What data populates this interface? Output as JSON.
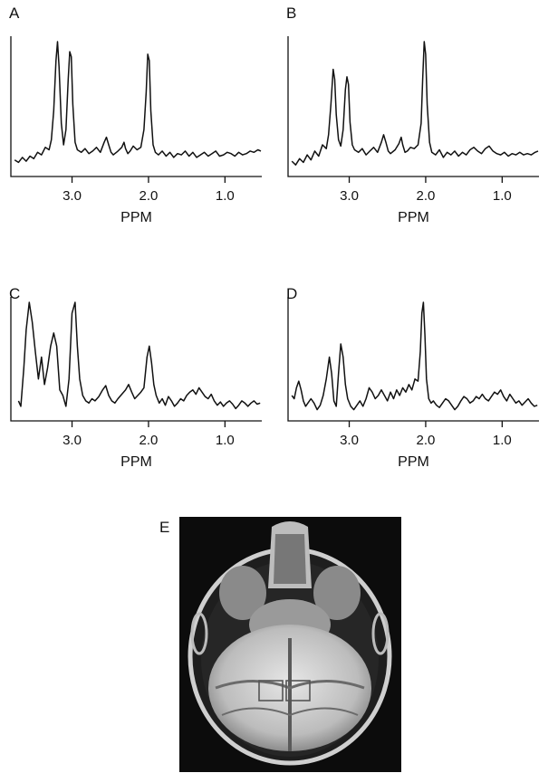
{
  "chart_data": [
    {
      "panel": "A",
      "type": "line",
      "xlabel": "PPM",
      "xlim": [
        3.8,
        0.4
      ],
      "x_reversed": true,
      "xticks": [
        3.0,
        2.0,
        1.0
      ],
      "xtick_labels": [
        "3.0",
        "2.0",
        "1.0"
      ],
      "series": [
        {
          "x": [
            3.75,
            3.7,
            3.65,
            3.6,
            3.55,
            3.5,
            3.45,
            3.4,
            3.35,
            3.3,
            3.27,
            3.24,
            3.21,
            3.19,
            3.17,
            3.14,
            3.11,
            3.08,
            3.05,
            3.03,
            3.01,
            2.99,
            2.96,
            2.93,
            2.88,
            2.83,
            2.78,
            2.73,
            2.68,
            2.63,
            2.58,
            2.55,
            2.52,
            2.49,
            2.46,
            2.4,
            2.35,
            2.32,
            2.3,
            2.27,
            2.24,
            2.2,
            2.15,
            2.1,
            2.06,
            2.03,
            2.01,
            1.99,
            1.97,
            1.94,
            1.91,
            1.87,
            1.82,
            1.77,
            1.72,
            1.67,
            1.62,
            1.57,
            1.52,
            1.47,
            1.42,
            1.37,
            1.32,
            1.27,
            1.22,
            1.17,
            1.12,
            1.07,
            1.02,
            0.97,
            0.92,
            0.87,
            0.82,
            0.77,
            0.72,
            0.67,
            0.62,
            0.57,
            0.53
          ],
          "y": [
            0.06,
            0.04,
            0.08,
            0.05,
            0.09,
            0.07,
            0.12,
            0.1,
            0.16,
            0.14,
            0.22,
            0.45,
            0.85,
            1.0,
            0.8,
            0.35,
            0.18,
            0.3,
            0.7,
            0.92,
            0.88,
            0.5,
            0.2,
            0.14,
            0.12,
            0.15,
            0.11,
            0.13,
            0.16,
            0.12,
            0.2,
            0.24,
            0.18,
            0.12,
            0.1,
            0.13,
            0.16,
            0.2,
            0.15,
            0.11,
            0.13,
            0.17,
            0.14,
            0.16,
            0.3,
            0.6,
            0.9,
            0.85,
            0.45,
            0.18,
            0.12,
            0.1,
            0.13,
            0.09,
            0.12,
            0.08,
            0.11,
            0.1,
            0.13,
            0.09,
            0.12,
            0.08,
            0.1,
            0.12,
            0.09,
            0.11,
            0.13,
            0.09,
            0.1,
            0.12,
            0.11,
            0.09,
            0.12,
            0.1,
            0.11,
            0.13,
            0.12,
            0.14,
            0.13
          ]
        }
      ]
    },
    {
      "panel": "B",
      "type": "line",
      "xlabel": "PPM",
      "xlim": [
        3.8,
        0.4
      ],
      "x_reversed": true,
      "xticks": [
        3.0,
        2.0,
        1.0
      ],
      "xtick_labels": [
        "3.0",
        "2.0",
        "1.0"
      ],
      "series": [
        {
          "x": [
            3.75,
            3.7,
            3.65,
            3.6,
            3.55,
            3.5,
            3.45,
            3.4,
            3.35,
            3.3,
            3.27,
            3.24,
            3.21,
            3.19,
            3.17,
            3.14,
            3.11,
            3.08,
            3.05,
            3.03,
            3.01,
            2.99,
            2.96,
            2.93,
            2.88,
            2.83,
            2.78,
            2.73,
            2.68,
            2.63,
            2.58,
            2.55,
            2.52,
            2.49,
            2.46,
            2.4,
            2.35,
            2.32,
            2.3,
            2.27,
            2.24,
            2.2,
            2.15,
            2.1,
            2.06,
            2.04,
            2.02,
            2.0,
            1.98,
            1.95,
            1.92,
            1.87,
            1.82,
            1.77,
            1.72,
            1.67,
            1.62,
            1.57,
            1.52,
            1.47,
            1.42,
            1.37,
            1.32,
            1.27,
            1.22,
            1.17,
            1.12,
            1.07,
            1.02,
            0.97,
            0.92,
            0.87,
            0.82,
            0.77,
            0.72,
            0.67,
            0.62,
            0.57,
            0.53
          ],
          "y": [
            0.05,
            0.02,
            0.07,
            0.04,
            0.1,
            0.06,
            0.13,
            0.09,
            0.18,
            0.15,
            0.26,
            0.5,
            0.78,
            0.7,
            0.42,
            0.22,
            0.17,
            0.3,
            0.62,
            0.72,
            0.66,
            0.36,
            0.18,
            0.14,
            0.12,
            0.15,
            0.1,
            0.13,
            0.16,
            0.12,
            0.2,
            0.26,
            0.2,
            0.13,
            0.11,
            0.14,
            0.19,
            0.24,
            0.18,
            0.12,
            0.13,
            0.16,
            0.15,
            0.18,
            0.35,
            0.7,
            1.0,
            0.9,
            0.5,
            0.2,
            0.12,
            0.1,
            0.14,
            0.08,
            0.12,
            0.1,
            0.13,
            0.09,
            0.12,
            0.1,
            0.14,
            0.16,
            0.13,
            0.11,
            0.15,
            0.17,
            0.13,
            0.11,
            0.1,
            0.12,
            0.09,
            0.11,
            0.1,
            0.12,
            0.1,
            0.11,
            0.1,
            0.12,
            0.13
          ]
        }
      ]
    },
    {
      "panel": "C",
      "type": "line",
      "xlabel": "PPM",
      "xlim": [
        3.8,
        0.4
      ],
      "x_reversed": true,
      "xticks": [
        3.0,
        2.0,
        1.0
      ],
      "xtick_labels": [
        "3.0",
        "2.0",
        "1.0"
      ],
      "series": [
        {
          "x": [
            3.7,
            3.67,
            3.63,
            3.6,
            3.56,
            3.52,
            3.48,
            3.44,
            3.4,
            3.36,
            3.32,
            3.28,
            3.24,
            3.2,
            3.16,
            3.12,
            3.08,
            3.04,
            3.0,
            2.96,
            2.93,
            2.9,
            2.86,
            2.82,
            2.78,
            2.74,
            2.7,
            2.65,
            2.6,
            2.56,
            2.52,
            2.48,
            2.44,
            2.4,
            2.35,
            2.3,
            2.26,
            2.22,
            2.18,
            2.14,
            2.1,
            2.06,
            2.02,
            1.99,
            1.96,
            1.93,
            1.9,
            1.86,
            1.82,
            1.78,
            1.74,
            1.7,
            1.66,
            1.62,
            1.58,
            1.54,
            1.5,
            1.46,
            1.42,
            1.38,
            1.34,
            1.3,
            1.26,
            1.22,
            1.18,
            1.14,
            1.1,
            1.06,
            1.02,
            0.98,
            0.94,
            0.9,
            0.86,
            0.82,
            0.78,
            0.74,
            0.7,
            0.66,
            0.62,
            0.58,
            0.54
          ],
          "y": [
            0.1,
            0.05,
            0.4,
            0.75,
            1.0,
            0.82,
            0.55,
            0.3,
            0.5,
            0.25,
            0.4,
            0.6,
            0.72,
            0.6,
            0.2,
            0.15,
            0.05,
            0.3,
            0.9,
            1.0,
            0.6,
            0.3,
            0.15,
            0.1,
            0.08,
            0.12,
            0.1,
            0.14,
            0.2,
            0.24,
            0.15,
            0.1,
            0.08,
            0.12,
            0.16,
            0.2,
            0.25,
            0.18,
            0.12,
            0.15,
            0.18,
            0.22,
            0.5,
            0.6,
            0.45,
            0.25,
            0.15,
            0.08,
            0.12,
            0.06,
            0.14,
            0.1,
            0.05,
            0.08,
            0.12,
            0.1,
            0.15,
            0.18,
            0.2,
            0.16,
            0.22,
            0.18,
            0.14,
            0.12,
            0.16,
            0.1,
            0.06,
            0.09,
            0.05,
            0.08,
            0.1,
            0.07,
            0.03,
            0.06,
            0.1,
            0.08,
            0.05,
            0.08,
            0.1,
            0.07,
            0.08
          ]
        }
      ]
    },
    {
      "panel": "D",
      "type": "line",
      "xlabel": "PPM",
      "xlim": [
        3.8,
        0.4
      ],
      "x_reversed": true,
      "xticks": [
        3.0,
        2.0,
        1.0
      ],
      "xtick_labels": [
        "3.0",
        "2.0",
        "1.0"
      ],
      "series": [
        {
          "x": [
            3.75,
            3.72,
            3.69,
            3.66,
            3.63,
            3.6,
            3.57,
            3.54,
            3.5,
            3.46,
            3.42,
            3.38,
            3.34,
            3.3,
            3.26,
            3.23,
            3.2,
            3.17,
            3.14,
            3.11,
            3.08,
            3.05,
            3.02,
            2.98,
            2.94,
            2.9,
            2.86,
            2.82,
            2.78,
            2.74,
            2.7,
            2.66,
            2.62,
            2.58,
            2.54,
            2.5,
            2.46,
            2.42,
            2.38,
            2.34,
            2.3,
            2.26,
            2.22,
            2.18,
            2.14,
            2.1,
            2.07,
            2.05,
            2.03,
            2.01,
            1.99,
            1.96,
            1.93,
            1.9,
            1.86,
            1.82,
            1.78,
            1.74,
            1.7,
            1.66,
            1.62,
            1.58,
            1.54,
            1.5,
            1.46,
            1.42,
            1.38,
            1.34,
            1.3,
            1.26,
            1.22,
            1.18,
            1.14,
            1.1,
            1.06,
            1.02,
            0.98,
            0.94,
            0.9,
            0.86,
            0.82,
            0.78,
            0.74,
            0.7,
            0.66,
            0.62,
            0.58,
            0.54
          ],
          "y": [
            0.15,
            0.12,
            0.22,
            0.28,
            0.2,
            0.1,
            0.05,
            0.08,
            0.12,
            0.08,
            0.02,
            0.06,
            0.15,
            0.3,
            0.5,
            0.35,
            0.1,
            0.05,
            0.35,
            0.62,
            0.5,
            0.25,
            0.12,
            0.05,
            0.02,
            0.06,
            0.1,
            0.05,
            0.12,
            0.22,
            0.18,
            0.12,
            0.15,
            0.2,
            0.15,
            0.1,
            0.18,
            0.12,
            0.2,
            0.15,
            0.22,
            0.18,
            0.25,
            0.2,
            0.3,
            0.28,
            0.55,
            0.9,
            1.0,
            0.7,
            0.3,
            0.12,
            0.08,
            0.1,
            0.06,
            0.04,
            0.08,
            0.12,
            0.1,
            0.06,
            0.02,
            0.05,
            0.1,
            0.14,
            0.12,
            0.08,
            0.1,
            0.14,
            0.12,
            0.16,
            0.12,
            0.1,
            0.14,
            0.18,
            0.16,
            0.2,
            0.14,
            0.1,
            0.16,
            0.12,
            0.08,
            0.1,
            0.06,
            0.09,
            0.12,
            0.08,
            0.05,
            0.06
          ]
        }
      ]
    }
  ],
  "image_panel": {
    "label": "E",
    "description_kind": "mri-axial-brain"
  }
}
